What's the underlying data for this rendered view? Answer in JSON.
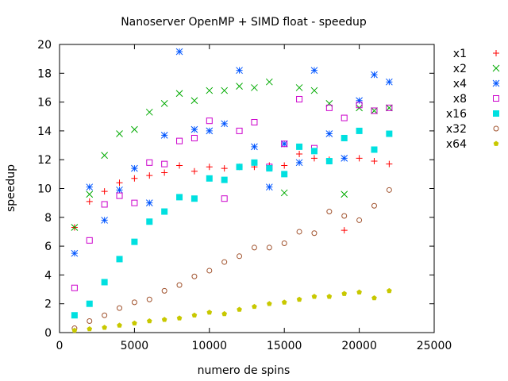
{
  "chart_data": {
    "type": "scatter",
    "title": "Nanoserver OpenMP + SIMD float - speedup",
    "xlabel": "numero de spins",
    "ylabel": "speedup",
    "xlim": [
      0,
      25000
    ],
    "ylim": [
      0,
      20
    ],
    "x_ticks": [
      "0",
      "5000",
      "10000",
      "15000",
      "20000",
      "25000"
    ],
    "y_ticks": [
      "0",
      "2",
      "4",
      "6",
      "8",
      "10",
      "12",
      "14",
      "16",
      "18",
      "20"
    ],
    "grid": false,
    "legend_position": "right",
    "x": [
      1000,
      2000,
      3000,
      4000,
      5000,
      6000,
      7000,
      8000,
      9000,
      10000,
      11000,
      12000,
      13000,
      14000,
      15000,
      16000,
      17000,
      18000,
      19000,
      20000,
      21000,
      22000
    ],
    "series": [
      {
        "name": "x1",
        "color": "#ff0000",
        "marker": "plus",
        "values": [
          7.3,
          9.1,
          9.8,
          10.4,
          10.7,
          10.9,
          11.1,
          11.6,
          11.2,
          11.5,
          11.4,
          11.5,
          11.5,
          11.6,
          11.6,
          12.4,
          12.1,
          12.0,
          7.1,
          12.1,
          11.9,
          11.7
        ]
      },
      {
        "name": "x2",
        "color": "#00aa00",
        "marker": "cross",
        "values": [
          7.3,
          9.6,
          12.3,
          13.8,
          14.1,
          15.3,
          15.9,
          16.6,
          16.1,
          16.8,
          16.8,
          17.1,
          17.0,
          17.4,
          9.7,
          17.0,
          16.8,
          15.9,
          9.6,
          15.6,
          15.4,
          15.6
        ]
      },
      {
        "name": "x4",
        "color": "#0055ff",
        "marker": "star",
        "values": [
          5.5,
          10.1,
          7.8,
          9.9,
          11.4,
          9.0,
          13.7,
          19.5,
          14.1,
          14.0,
          14.5,
          18.2,
          12.9,
          10.1,
          13.1,
          11.8,
          18.2,
          13.8,
          12.1,
          16.1,
          17.9,
          17.4
        ]
      },
      {
        "name": "x8",
        "color": "#cc00cc",
        "marker": "open-square",
        "values": [
          3.1,
          6.4,
          8.9,
          9.5,
          9.0,
          11.8,
          11.7,
          13.3,
          13.5,
          14.7,
          9.3,
          14.0,
          14.6,
          11.5,
          13.1,
          16.2,
          12.8,
          15.6,
          14.9,
          15.8,
          15.4,
          15.6
        ]
      },
      {
        "name": "x16",
        "color": "#00e0e0",
        "marker": "filled-square",
        "values": [
          1.2,
          2.0,
          3.5,
          5.1,
          6.3,
          7.7,
          8.4,
          9.4,
          9.3,
          10.7,
          10.6,
          11.5,
          11.8,
          11.4,
          11.0,
          12.9,
          12.6,
          11.9,
          13.5,
          14.0,
          12.7,
          13.8
        ]
      },
      {
        "name": "x32",
        "color": "#a0522d",
        "marker": "open-circle",
        "values": [
          0.3,
          0.8,
          1.2,
          1.7,
          2.1,
          2.3,
          2.9,
          3.3,
          3.9,
          4.3,
          4.9,
          5.3,
          5.9,
          5.9,
          6.2,
          7.0,
          6.9,
          8.4,
          8.1,
          7.8,
          8.8,
          9.9
        ]
      },
      {
        "name": "x64",
        "color": "#c8c800",
        "marker": "filled-pentagon",
        "values": [
          0.15,
          0.25,
          0.35,
          0.5,
          0.65,
          0.8,
          0.9,
          1.0,
          1.2,
          1.4,
          1.3,
          1.6,
          1.8,
          2.0,
          2.1,
          2.3,
          2.5,
          2.5,
          2.7,
          2.8,
          2.4,
          2.9
        ]
      }
    ]
  }
}
